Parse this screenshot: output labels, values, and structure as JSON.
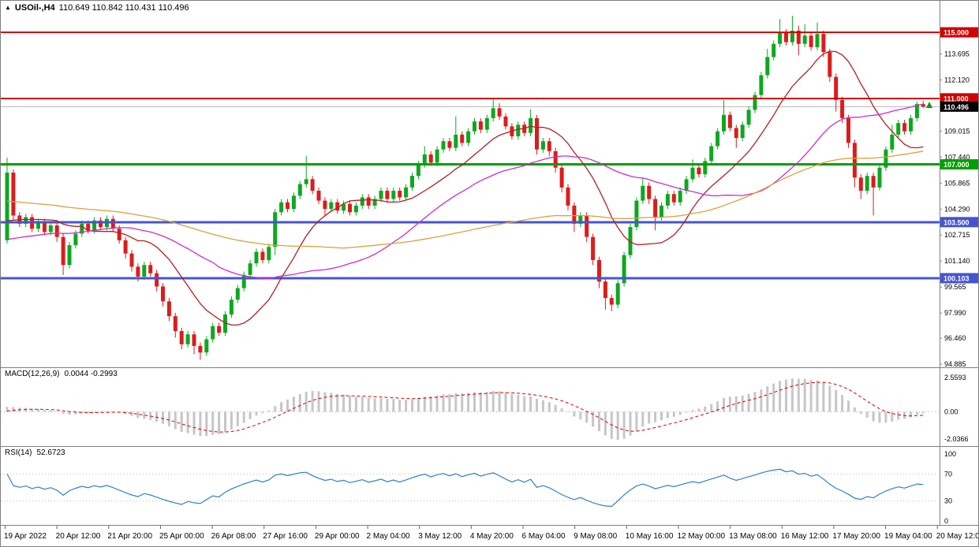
{
  "header": {
    "symbol": "USOil-,H4",
    "ohlc": "110.649 110.842 110.431 110.496"
  },
  "chart_data": {
    "type": "candlestick",
    "symbol": "USOil-",
    "timeframe": "H4",
    "current_bar": {
      "open": 110.649,
      "high": 110.842,
      "low": 110.431,
      "close": 110.496
    },
    "style": {
      "up_color": "#0ca81f",
      "down_color": "#dc1c1c",
      "bid_line_color": "#b8b8b8"
    },
    "price_axis": {
      "ticks": [
        "113.695",
        "112.120",
        "109.015",
        "107.440",
        "105.865",
        "104.290",
        "102.715",
        "101.140",
        "99.565",
        "97.990",
        "96.460",
        "94.885"
      ],
      "current_price": 110.496,
      "current_label": "110.496"
    },
    "hlines": [
      {
        "price": 115.0,
        "label": "115.000",
        "color": "#d40000",
        "width": 2
      },
      {
        "price": 111.0,
        "label": "111.000",
        "color": "#d40000",
        "width": 2
      },
      {
        "price": 107.0,
        "label": "107.000",
        "color": "#00a000",
        "width": 3
      },
      {
        "price": 103.5,
        "label": "103.500",
        "color": "#4455d2",
        "width": 3
      },
      {
        "price": 100.103,
        "label": "100.103",
        "color": "#4455d2",
        "width": 3
      }
    ],
    "moving_averages": [
      {
        "period": 13,
        "color": "#b22020"
      },
      {
        "period": 34,
        "color": "#cb2ecb"
      },
      {
        "period": 89,
        "color": "#d8a33c"
      }
    ],
    "candles": [
      [
        102.4,
        107.4,
        102.2,
        106.5
      ],
      [
        106.5,
        106.7,
        103.6,
        103.9
      ],
      [
        103.9,
        104.1,
        103.2,
        103.4
      ],
      [
        103.4,
        104.0,
        103.2,
        103.8
      ],
      [
        103.8,
        104.0,
        102.9,
        103.1
      ],
      [
        103.1,
        103.7,
        102.9,
        103.5
      ],
      [
        103.5,
        103.7,
        102.7,
        102.9
      ],
      [
        102.9,
        103.5,
        102.7,
        103.3
      ],
      [
        103.3,
        103.5,
        102.3,
        102.6
      ],
      [
        102.6,
        102.8,
        100.3,
        100.9
      ],
      [
        100.9,
        102.3,
        100.7,
        102.1
      ],
      [
        102.1,
        103.0,
        101.9,
        102.8
      ],
      [
        102.8,
        103.6,
        102.6,
        103.4
      ],
      [
        103.4,
        103.6,
        102.8,
        103.0
      ],
      [
        103.0,
        103.8,
        102.8,
        103.6
      ],
      [
        103.6,
        103.8,
        103.0,
        103.2
      ],
      [
        103.2,
        103.9,
        103.0,
        103.7
      ],
      [
        103.7,
        103.9,
        102.9,
        103.1
      ],
      [
        103.1,
        103.3,
        102.2,
        102.4
      ],
      [
        102.4,
        102.6,
        101.3,
        101.6
      ],
      [
        101.6,
        101.8,
        100.5,
        100.8
      ],
      [
        100.8,
        101.0,
        99.9,
        100.2
      ],
      [
        100.2,
        101.1,
        100.0,
        100.9
      ],
      [
        100.9,
        101.1,
        100.2,
        100.4
      ],
      [
        100.4,
        100.6,
        99.3,
        99.6
      ],
      [
        99.6,
        99.8,
        98.4,
        98.7
      ],
      [
        98.7,
        98.9,
        97.5,
        97.8
      ],
      [
        97.8,
        98.0,
        96.5,
        96.9
      ],
      [
        96.9,
        97.1,
        95.8,
        96.1
      ],
      [
        96.1,
        96.9,
        95.9,
        96.7
      ],
      [
        96.7,
        96.9,
        95.5,
        96.0
      ],
      [
        96.0,
        96.2,
        95.15,
        95.6
      ],
      [
        95.6,
        96.6,
        95.4,
        96.4
      ],
      [
        96.4,
        97.4,
        96.2,
        97.2
      ],
      [
        97.2,
        97.4,
        96.6,
        96.8
      ],
      [
        96.8,
        98.1,
        96.6,
        97.9
      ],
      [
        97.9,
        99.0,
        97.7,
        98.8
      ],
      [
        98.8,
        99.7,
        98.6,
        99.5
      ],
      [
        99.5,
        100.5,
        99.3,
        100.3
      ],
      [
        100.3,
        101.2,
        100.1,
        101.0
      ],
      [
        101.0,
        101.9,
        100.8,
        101.7
      ],
      [
        101.7,
        101.9,
        101.0,
        101.2
      ],
      [
        101.2,
        102.2,
        101.0,
        102.0
      ],
      [
        102.0,
        104.3,
        101.5,
        104.1
      ],
      [
        104.1,
        104.9,
        103.9,
        104.7
      ],
      [
        104.7,
        104.9,
        104.1,
        104.3
      ],
      [
        104.3,
        105.3,
        104.1,
        105.1
      ],
      [
        105.1,
        106.0,
        104.9,
        105.8
      ],
      [
        105.8,
        107.5,
        105.6,
        106.1
      ],
      [
        106.1,
        106.3,
        105.2,
        105.4
      ],
      [
        105.4,
        105.6,
        104.6,
        104.8
      ],
      [
        104.8,
        105.0,
        103.9,
        104.3
      ],
      [
        104.3,
        104.9,
        104.1,
        104.7
      ],
      [
        104.7,
        104.9,
        104.0,
        104.2
      ],
      [
        104.2,
        104.8,
        104.0,
        104.6
      ],
      [
        104.6,
        104.8,
        103.9,
        104.1
      ],
      [
        104.1,
        104.7,
        103.9,
        104.5
      ],
      [
        104.5,
        105.2,
        104.3,
        105.0
      ],
      [
        105.0,
        105.2,
        104.3,
        104.5
      ],
      [
        104.5,
        105.1,
        104.3,
        104.9
      ],
      [
        104.9,
        105.6,
        104.7,
        105.4
      ],
      [
        105.4,
        105.6,
        104.7,
        104.9
      ],
      [
        104.9,
        105.6,
        104.7,
        105.4
      ],
      [
        105.4,
        105.6,
        104.8,
        105.0
      ],
      [
        105.0,
        105.8,
        104.8,
        105.6
      ],
      [
        105.6,
        106.5,
        105.4,
        106.3
      ],
      [
        106.3,
        107.2,
        106.1,
        107.0
      ],
      [
        107.0,
        108.1,
        106.8,
        107.6
      ],
      [
        107.6,
        107.8,
        106.9,
        107.1
      ],
      [
        107.1,
        108.1,
        106.9,
        107.9
      ],
      [
        107.9,
        108.6,
        107.7,
        108.4
      ],
      [
        108.4,
        108.6,
        107.8,
        108.0
      ],
      [
        108.0,
        109.9,
        107.8,
        108.8
      ],
      [
        108.8,
        109.0,
        108.1,
        108.3
      ],
      [
        108.3,
        109.2,
        108.1,
        109.0
      ],
      [
        109.0,
        109.8,
        108.8,
        109.6
      ],
      [
        109.6,
        109.8,
        108.9,
        109.1
      ],
      [
        109.1,
        110.0,
        108.9,
        109.8
      ],
      [
        109.8,
        111.0,
        109.6,
        110.4
      ],
      [
        110.4,
        110.7,
        109.7,
        109.9
      ],
      [
        109.9,
        110.1,
        109.1,
        109.3
      ],
      [
        109.3,
        109.5,
        108.5,
        108.7
      ],
      [
        108.7,
        109.6,
        108.5,
        109.4
      ],
      [
        109.4,
        109.6,
        108.7,
        108.9
      ],
      [
        108.9,
        110.35,
        108.7,
        109.8
      ],
      [
        109.8,
        110.0,
        107.6,
        107.9
      ],
      [
        107.9,
        108.6,
        107.7,
        108.4
      ],
      [
        108.4,
        108.6,
        107.5,
        107.8
      ],
      [
        107.8,
        108.0,
        106.5,
        106.8
      ],
      [
        106.8,
        107.0,
        105.3,
        105.6
      ],
      [
        105.6,
        105.8,
        104.2,
        104.5
      ],
      [
        104.5,
        104.7,
        102.9,
        103.4
      ],
      [
        103.4,
        104.1,
        103.2,
        103.9
      ],
      [
        103.9,
        104.1,
        102.3,
        102.6
      ],
      [
        102.6,
        102.8,
        100.9,
        101.2
      ],
      [
        101.2,
        101.4,
        99.5,
        99.9
      ],
      [
        99.9,
        100.1,
        98.2,
        98.9
      ],
      [
        98.9,
        99.1,
        98.1,
        98.5
      ],
      [
        98.5,
        100.0,
        98.3,
        99.8
      ],
      [
        99.8,
        101.7,
        99.6,
        101.5
      ],
      [
        101.5,
        103.4,
        101.3,
        103.2
      ],
      [
        103.2,
        105.0,
        103.0,
        104.8
      ],
      [
        104.8,
        106.2,
        104.6,
        105.7
      ],
      [
        105.7,
        105.9,
        104.6,
        104.9
      ],
      [
        104.9,
        105.1,
        103.0,
        103.8
      ],
      [
        103.8,
        104.7,
        103.6,
        104.5
      ],
      [
        104.5,
        105.4,
        104.3,
        105.2
      ],
      [
        105.2,
        105.4,
        104.5,
        104.7
      ],
      [
        104.7,
        105.6,
        104.5,
        105.4
      ],
      [
        105.4,
        106.3,
        105.2,
        106.1
      ],
      [
        106.1,
        107.3,
        105.9,
        106.8
      ],
      [
        106.8,
        107.0,
        106.2,
        106.4
      ],
      [
        106.4,
        107.4,
        106.2,
        107.2
      ],
      [
        107.2,
        108.3,
        107.0,
        108.1
      ],
      [
        108.1,
        109.2,
        107.9,
        109.0
      ],
      [
        109.0,
        110.9,
        108.8,
        110.0
      ],
      [
        110.0,
        110.2,
        109.0,
        109.2
      ],
      [
        109.2,
        109.4,
        108.0,
        108.6
      ],
      [
        108.6,
        109.6,
        108.4,
        109.4
      ],
      [
        109.4,
        110.5,
        109.2,
        110.3
      ],
      [
        110.3,
        111.4,
        110.1,
        111.2
      ],
      [
        111.2,
        112.6,
        111.0,
        112.4
      ],
      [
        112.4,
        114.0,
        112.2,
        113.5
      ],
      [
        113.5,
        114.5,
        113.3,
        114.3
      ],
      [
        114.3,
        115.8,
        114.1,
        115.0
      ],
      [
        115.0,
        115.2,
        114.2,
        114.4
      ],
      [
        114.4,
        116.0,
        114.2,
        115.1
      ],
      [
        115.1,
        115.4,
        113.6,
        114.3
      ],
      [
        114.3,
        115.5,
        114.1,
        114.8
      ],
      [
        114.8,
        115.0,
        113.9,
        114.1
      ],
      [
        114.1,
        115.6,
        113.9,
        114.9
      ],
      [
        114.9,
        115.1,
        113.5,
        113.8
      ],
      [
        113.8,
        114.0,
        112.0,
        112.3
      ],
      [
        112.3,
        112.5,
        110.2,
        110.9
      ],
      [
        110.9,
        111.1,
        109.5,
        109.8
      ],
      [
        109.8,
        110.0,
        108.0,
        108.3
      ],
      [
        108.3,
        108.5,
        105.6,
        106.2
      ],
      [
        106.2,
        106.4,
        104.9,
        105.4
      ],
      [
        105.4,
        106.5,
        105.2,
        106.3
      ],
      [
        106.3,
        106.5,
        103.9,
        105.6
      ],
      [
        105.6,
        107.0,
        105.4,
        106.8
      ],
      [
        106.8,
        108.1,
        106.6,
        107.9
      ],
      [
        107.9,
        109.4,
        107.7,
        108.8
      ],
      [
        108.8,
        109.7,
        108.6,
        109.5
      ],
      [
        109.5,
        109.7,
        108.8,
        109.0
      ],
      [
        109.0,
        110.0,
        108.8,
        109.8
      ],
      [
        109.8,
        110.8,
        109.6,
        110.649
      ],
      [
        110.649,
        110.842,
        110.431,
        110.496
      ]
    ],
    "prehistory_closes": [
      106.0,
      106.6,
      105.9,
      106.7,
      106.2,
      106.5,
      106.0,
      106.4,
      106.0,
      106.6,
      105.9,
      106.7,
      106.2,
      106.5,
      106.0,
      106.4,
      106.0,
      106.6,
      105.9,
      106.7,
      106.2,
      106.5,
      106.0,
      106.4,
      106.0,
      106.6,
      105.9,
      106.7,
      106.2,
      106.5,
      106.0,
      106.4,
      106.0,
      106.6,
      105.9,
      106.7,
      106.2,
      106.5,
      106.0,
      106.4,
      106.0,
      106.6,
      105.9,
      106.7,
      106.2,
      106.5,
      106.0,
      106.4,
      106.0,
      106.6,
      105.9,
      106.7,
      106.2,
      106.5,
      106.0,
      101.5,
      102.0,
      101.4,
      101.9,
      101.6,
      101.8,
      101.5,
      101.5,
      102.0,
      101.4,
      101.9,
      101.6,
      101.8,
      101.5,
      101.5,
      102.0,
      101.4,
      101.9,
      101.6,
      101.8,
      101.5,
      103.1,
      103.5,
      103.0,
      103.6,
      103.2,
      103.4,
      103.1,
      103.5,
      103.2,
      103.6,
      103.3,
      103.4,
      103.3
    ],
    "time_axis": [
      "19 Apr 2022",
      "20 Apr 12:00",
      "21 Apr 20:00",
      "25 Apr 00:00",
      "26 Apr 08:00",
      "27 Apr 16:00",
      "29 Apr 00:00",
      "2 May 04:00",
      "3 May 12:00",
      "4 May 20:00",
      "6 May 04:00",
      "9 May 08:00",
      "10 May 16:00",
      "12 May 00:00",
      "13 May 08:00",
      "16 May 12:00",
      "17 May 20:00",
      "19 May 04:00",
      "20 May 12:00"
    ],
    "macd": {
      "label": "MACD(12,26,9)",
      "values_text": "0.0044 -0.2993",
      "fast": 12,
      "slow": 26,
      "signal_period": 9,
      "axis_ticks": [
        {
          "v": 2.5593,
          "label": "2.5593"
        },
        {
          "v": 0,
          "label": "0.00"
        },
        {
          "v": -2.0366,
          "label": "-2.0366"
        }
      ],
      "histogram_color": "#c6c6c6",
      "signal_color": "#d40000"
    },
    "rsi": {
      "label": "RSI(14)",
      "value_text": "52.6723",
      "period": 14,
      "axis_ticks": [
        {
          "v": 100,
          "label": "100"
        },
        {
          "v": 70,
          "label": "70"
        },
        {
          "v": 30,
          "label": "30"
        },
        {
          "v": 0,
          "label": "0"
        }
      ],
      "levels": [
        70,
        30
      ],
      "line_color": "#3080c8"
    }
  }
}
